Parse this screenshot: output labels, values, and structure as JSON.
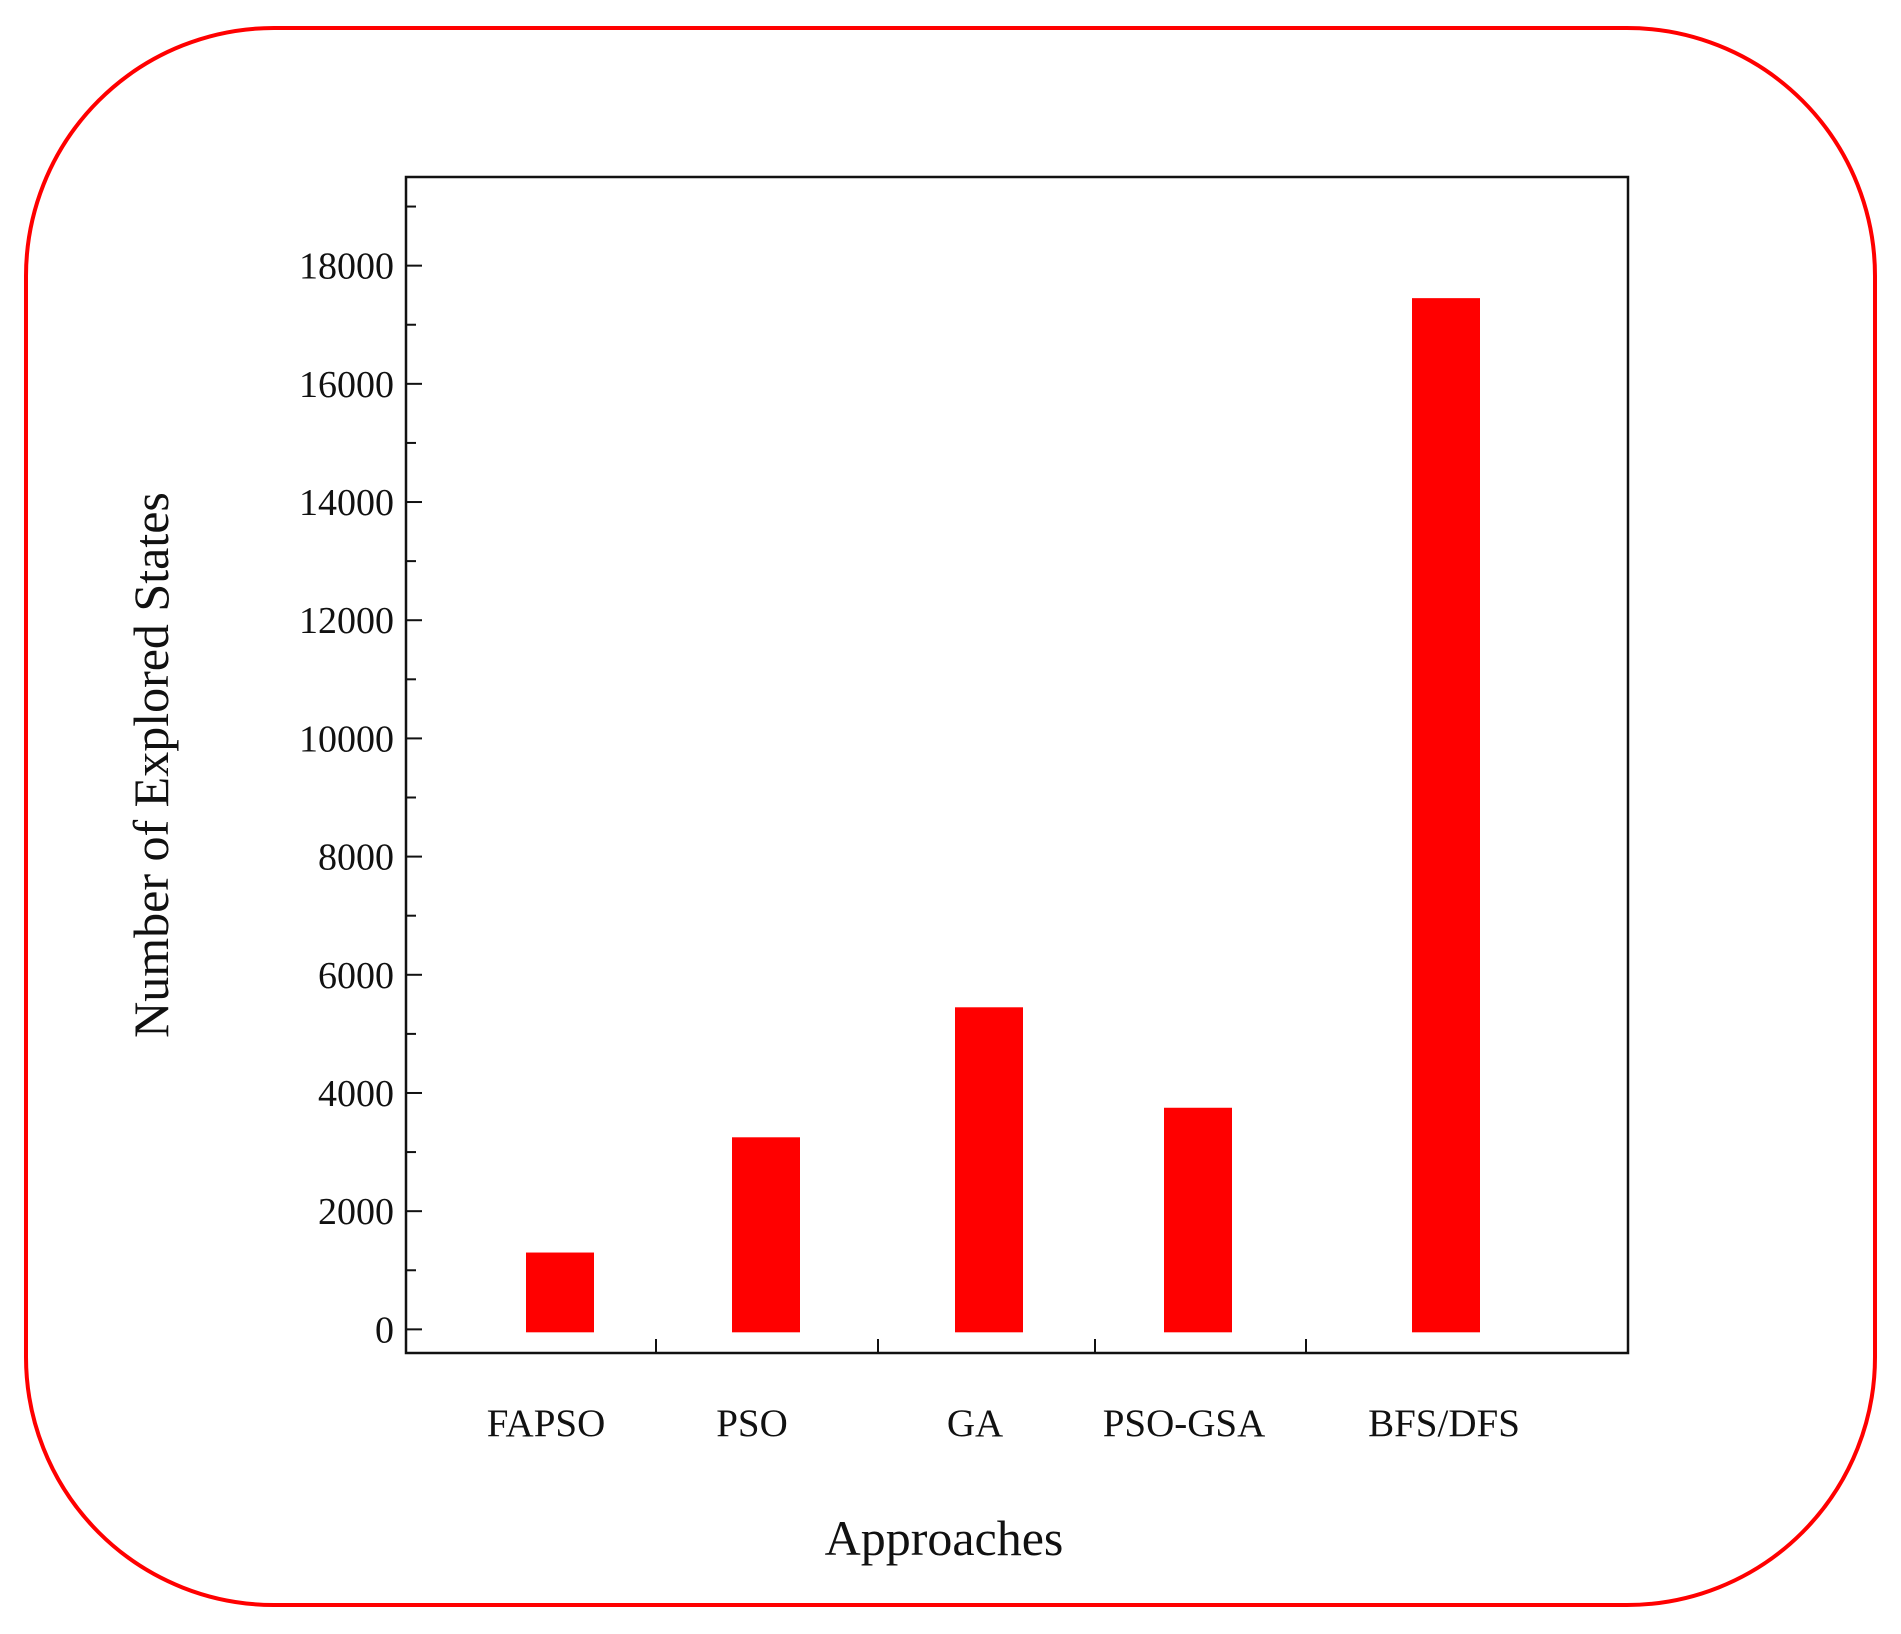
{
  "colors": {
    "frame": "#ff0000",
    "bar": "#ff0000",
    "axis": "#111111",
    "background": "#ffffff"
  },
  "chart_data": {
    "type": "bar",
    "title": "",
    "xlabel": "Approaches",
    "ylabel": "Number of Explored States",
    "categories": [
      "FAPSO",
      "PSO",
      "GA",
      "PSO-GSA",
      "BFS/DFS"
    ],
    "values": [
      1300,
      3250,
      5450,
      3750,
      17450
    ],
    "ylim": [
      -400,
      19500
    ],
    "yticks": [
      0,
      2000,
      4000,
      6000,
      8000,
      10000,
      12000,
      14000,
      16000,
      18000
    ],
    "ytick_labels": [
      "0",
      "2000",
      "4000",
      "6000",
      "8000",
      "10000",
      "12000",
      "14000",
      "16000",
      "18000"
    ],
    "grid": false,
    "legend": "none"
  }
}
